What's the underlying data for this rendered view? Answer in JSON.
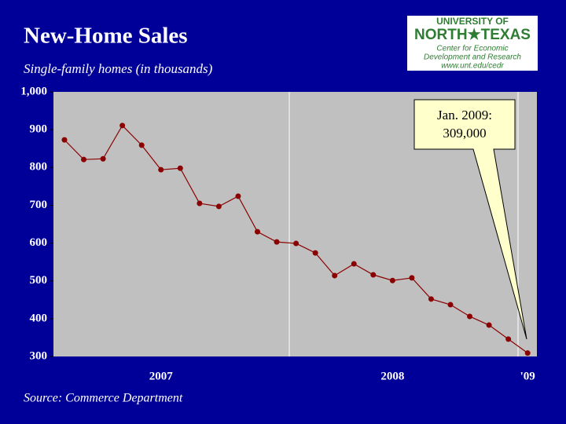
{
  "chart_data": {
    "type": "line",
    "title": "New-Home Sales",
    "subtitle": "Single-family homes (in thousands)",
    "source": "Source:  Commerce Department",
    "logo": [
      "UNIVERSITY OF",
      "NORTH★TEXAS",
      "Center for Economic",
      "Development and Research",
      "www.unt.edu/cedr"
    ],
    "annotation": [
      "Jan. 2009:",
      "309,000"
    ],
    "categories": [
      null,
      null,
      null,
      null,
      null,
      "2007",
      null,
      null,
      null,
      null,
      null,
      null,
      null,
      null,
      null,
      null,
      null,
      "2008",
      null,
      null,
      null,
      null,
      null,
      null,
      "'09"
    ],
    "series": [
      {
        "name": "New-home sales",
        "color": "#8b0000",
        "values": [
          873,
          821,
          823,
          911,
          859,
          794,
          798,
          705,
          697,
          724,
          630,
          603,
          599,
          574,
          514,
          545,
          516,
          501,
          508,
          452,
          437,
          406,
          383,
          346,
          309
        ]
      }
    ],
    "ylim": [
      300,
      1000
    ],
    "yticks": [
      300,
      400,
      500,
      600,
      700,
      800,
      900,
      {
        "value": 1000,
        "label": "1,000"
      }
    ],
    "grid": false
  }
}
